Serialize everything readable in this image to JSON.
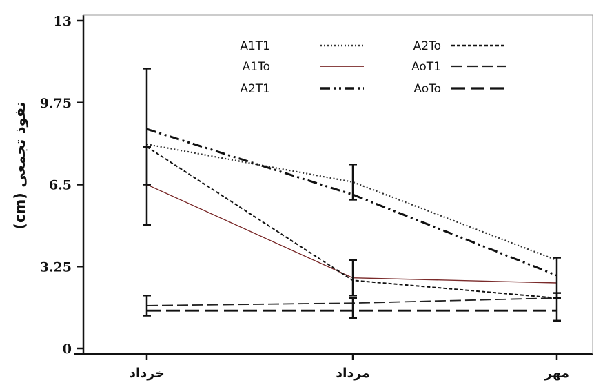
{
  "chart_data": {
    "type": "line",
    "title": "",
    "xlabel": "",
    "ylabel": "نفوذ تجمعی (cm)",
    "categories": [
      "خرداد",
      "مرداد",
      "مهر"
    ],
    "ylim": [
      0,
      13
    ],
    "yticks": [
      "0",
      "3.25",
      "6.5",
      "9.75",
      "13"
    ],
    "legend_position": "top",
    "series": [
      {
        "name": "A1T1",
        "values": [
          8.1,
          6.6,
          3.5
        ],
        "dash": "2,3",
        "width": 2.2,
        "color": "#333333",
        "errors": []
      },
      {
        "name": "A1To",
        "values": [
          6.5,
          2.8,
          2.6
        ],
        "dash": "",
        "width": 1.4,
        "color": "#7a2a2a",
        "errors": []
      },
      {
        "name": "A2T1",
        "values": [
          8.7,
          6.1,
          2.9
        ],
        "dash": "14,5,3,5,3,5",
        "width": 3,
        "color": "#111111",
        "errors": []
      },
      {
        "name": "A2To",
        "values": [
          8.0,
          2.7,
          2.0
        ],
        "dash": "5,3",
        "width": 2,
        "color": "#111111",
        "errors": []
      },
      {
        "name": "AoT1",
        "values": [
          1.7,
          1.8,
          2.0
        ],
        "dash": "16,6",
        "width": 1.8,
        "color": "#222222",
        "errors": []
      },
      {
        "name": "AoTo",
        "values": [
          1.5,
          1.5,
          1.5
        ],
        "dash": "20,8",
        "width": 2.8,
        "color": "#111111",
        "errors": []
      }
    ],
    "error_bars": [
      {
        "x": 0,
        "low": 4.9,
        "high": 11.1
      },
      {
        "x": 0,
        "low": 6.5,
        "high": 8.0
      },
      {
        "x": 0,
        "low": 1.3,
        "high": 2.1
      },
      {
        "x": 1,
        "low": 5.9,
        "high": 7.3
      },
      {
        "x": 1,
        "low": 2.1,
        "high": 3.5
      },
      {
        "x": 1,
        "low": 1.2,
        "high": 2.0
      },
      {
        "x": 2,
        "low": 2.0,
        "high": 3.6
      },
      {
        "x": 2,
        "low": 1.1,
        "high": 2.2
      }
    ]
  }
}
